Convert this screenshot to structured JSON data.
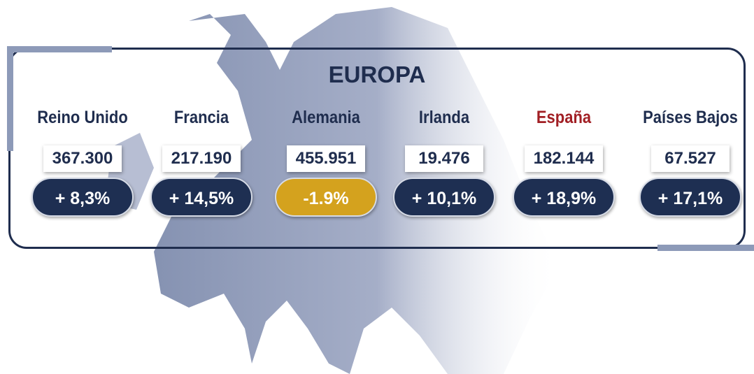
{
  "title": "EUROPA",
  "countries": [
    {
      "name": "Reino Unido",
      "value": "367.300",
      "change": "+ 8,3%"
    },
    {
      "name": "Francia",
      "value": "217.190",
      "change": "+ 14,5%"
    },
    {
      "name": "Alemania",
      "value": "455.951",
      "change": "-1.9%"
    },
    {
      "name": "Irlanda",
      "value": "19.476",
      "change": "+ 10,1%"
    },
    {
      "name": "España",
      "value": "182.144",
      "change": "+ 18,9%"
    },
    {
      "name": "Países Bajos",
      "value": "67.527",
      "change": "+ 17,1%"
    }
  ]
}
